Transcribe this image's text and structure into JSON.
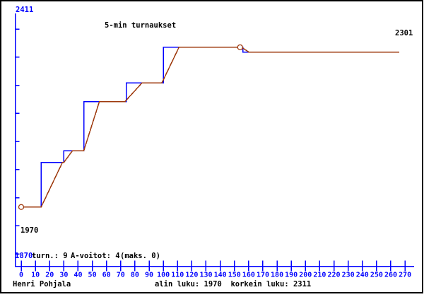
{
  "window": {
    "background": "#ffffff",
    "border_color": "#000000"
  },
  "labels": {
    "title": "5-min turnaukset",
    "y_axis_max": "2411",
    "y_axis_min": "1870",
    "start_rating": "1970",
    "final_rating": "2301",
    "stat_tournaments": "turn.: 9",
    "stat_a_wins": "A-voitot: 4",
    "stat_maks": "(maks. 0)",
    "player_name": "Henri Pohjala",
    "summary": "alin luku: 1970  korkein luku: 2311"
  },
  "colors": {
    "axis": "#0000ff",
    "official_line": "#0000ff",
    "progress_line": "#9e3a0e",
    "text": "#000000"
  },
  "chart_data": {
    "type": "line",
    "title": "5-min turnaukset",
    "xlabel": "",
    "ylabel": "",
    "legend": "none",
    "grid": false,
    "x_axis": {
      "min": 0,
      "max": 270,
      "ticks": [
        0,
        10,
        20,
        30,
        40,
        50,
        60,
        70,
        80,
        90,
        100,
        110,
        120,
        130,
        140,
        150,
        160,
        170,
        180,
        190,
        200,
        210,
        220,
        230,
        240,
        250,
        260,
        270
      ]
    },
    "y_axis": {
      "min": 1870,
      "max": 2411,
      "tick_interval": 60,
      "tick_values": [
        1870,
        1930,
        1990,
        2050,
        2110,
        2170,
        2230,
        2290,
        2350
      ],
      "max_label": "2411",
      "min_label": "1870"
    },
    "series": [
      {
        "name": "official-rating-steps",
        "color": "#0000ff",
        "points": [
          [
            0,
            1970
          ],
          [
            14,
            1970
          ],
          [
            14,
            2065
          ],
          [
            30,
            2065
          ],
          [
            30,
            2090
          ],
          [
            44,
            2090
          ],
          [
            44,
            2195
          ],
          [
            74,
            2195
          ],
          [
            74,
            2235
          ],
          [
            100,
            2235
          ],
          [
            100,
            2311
          ],
          [
            156,
            2311
          ],
          [
            156,
            2301
          ],
          [
            163,
            2301
          ]
        ]
      },
      {
        "name": "game-by-game-progress",
        "color": "#9e3a0e",
        "points": [
          [
            0,
            1970
          ],
          [
            14,
            1970
          ],
          [
            29,
            2065
          ],
          [
            30,
            2065
          ],
          [
            36,
            2090
          ],
          [
            44,
            2090
          ],
          [
            55,
            2195
          ],
          [
            73,
            2195
          ],
          [
            85,
            2235
          ],
          [
            99,
            2235
          ],
          [
            111,
            2311
          ],
          [
            155,
            2311
          ],
          [
            160,
            2301
          ],
          [
            266,
            2301
          ]
        ]
      }
    ],
    "markers": [
      {
        "x": 0,
        "y": 1970,
        "meaning": "start / lowest rating 1970"
      },
      {
        "x": 154,
        "y": 2311,
        "meaning": "highest rating 2311"
      }
    ],
    "stats": {
      "tournaments": 9,
      "a_wins": 4,
      "maks": 0,
      "lowest_rating": 1970,
      "highest_rating": 2311,
      "final_rating": 2301
    }
  }
}
